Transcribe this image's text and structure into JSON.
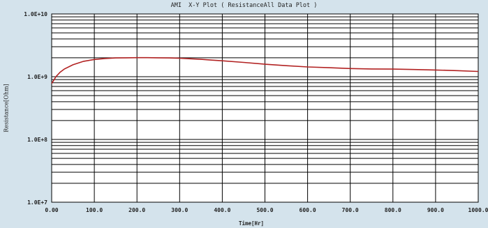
{
  "chart_data": {
    "type": "line",
    "title": "AMI  X-Y Plot ( ResistanceAll Data Plot )",
    "xlabel": "Time[Hr]",
    "ylabel": "Resistance[Ohm]",
    "xlim": [
      0,
      1000
    ],
    "ylim": [
      10000000,
      10000000000
    ],
    "yscale": "log",
    "grid": true,
    "x_ticks": [
      "0.00",
      "100.0",
      "200.0",
      "300.0",
      "400.0",
      "500.0",
      "600.0",
      "700.0",
      "800.0",
      "900.0",
      "1000.0"
    ],
    "y_ticks": [
      "1.0E+7",
      "1.0E+8",
      "1.0E+9",
      "1.0E+10"
    ],
    "line_color": "#b22222",
    "series": [
      {
        "x": [
          0,
          5,
          10,
          20,
          30,
          50,
          75,
          100,
          125,
          150,
          175,
          200,
          225,
          250,
          275,
          300,
          325,
          350,
          375,
          400,
          450,
          500,
          550,
          600,
          650,
          700,
          750,
          800,
          850,
          900,
          950,
          1000
        ],
        "values": [
          780000000,
          880000000,
          1000000000,
          1180000000,
          1330000000,
          1550000000,
          1760000000,
          1880000000,
          1950000000,
          1990000000,
          2000000000,
          2010000000,
          2010000000,
          2000000000,
          1990000000,
          1970000000,
          1930000000,
          1890000000,
          1840000000,
          1790000000,
          1690000000,
          1580000000,
          1500000000,
          1430000000,
          1390000000,
          1350000000,
          1330000000,
          1320000000,
          1300000000,
          1280000000,
          1250000000,
          1210000000
        ]
      }
    ]
  }
}
